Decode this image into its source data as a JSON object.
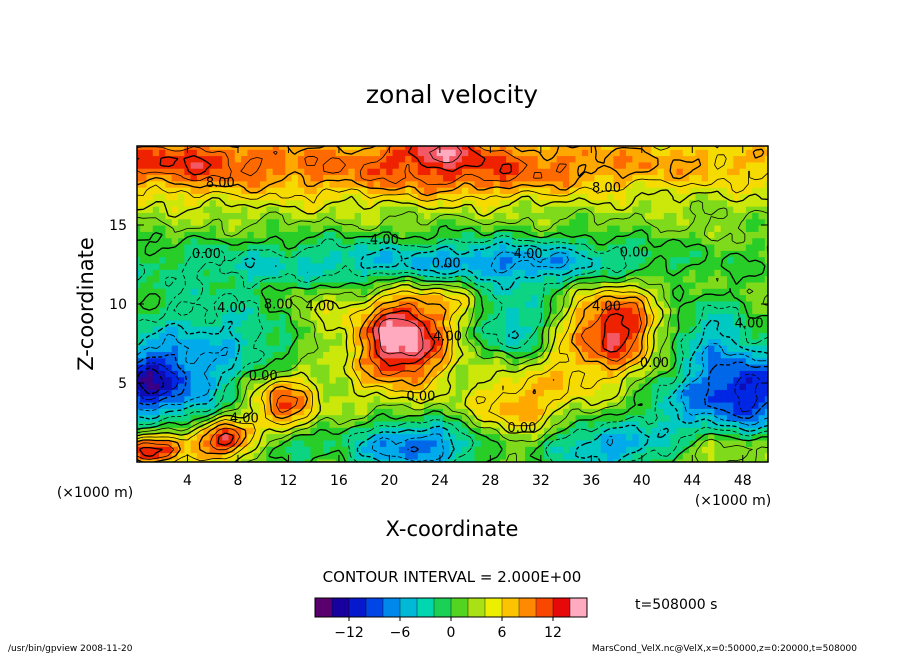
{
  "chart_data": {
    "type": "heatmap",
    "title": "zonal velocity",
    "xlabel": "X-coordinate",
    "ylabel": "Z-coordinate",
    "x_unit": "(×1000 m)",
    "z_unit": "(×1000 m)",
    "xlim": [
      0,
      50
    ],
    "ylim": [
      0,
      20
    ],
    "x_ticks": [
      4,
      8,
      12,
      16,
      20,
      24,
      28,
      32,
      36,
      40,
      44,
      48
    ],
    "y_ticks": [
      5,
      10,
      15
    ],
    "x_tick_labels": [
      "4",
      "8",
      "12",
      "16",
      "20",
      "24",
      "28",
      "32",
      "36",
      "40",
      "44",
      "48"
    ],
    "y_tick_labels": [
      "5",
      "10",
      "15"
    ],
    "contour_interval_text": "CONTOUR INTERVAL = 2.000E+00",
    "colorbar": {
      "min": -15,
      "max": 15,
      "ticks": [
        -12,
        -6,
        0,
        6,
        12
      ],
      "tick_labels": [
        "−12",
        "−6",
        "0",
        "6",
        "12"
      ]
    },
    "time_text": "t=508000 s",
    "footer_left": "/usr/bin/gpview  2008-11-20",
    "footer_right": "MarsCond_VelX.nc@VelX,x=0:50000,z=0:20000,t=508000",
    "field_features": [
      {
        "x": 25,
        "z": 19.0,
        "sx": 30,
        "sz": 1.5,
        "value": 7
      },
      {
        "x": 24,
        "z": 19.8,
        "sx": 2.5,
        "sz": 0.7,
        "value": 6
      },
      {
        "x": 3,
        "z": 19.3,
        "sx": 4,
        "sz": 1.0,
        "value": 4
      },
      {
        "x": 26,
        "z": 17.8,
        "sx": 6,
        "sz": 1.0,
        "value": 3
      },
      {
        "x": 6,
        "z": 17.5,
        "sx": 8,
        "sz": 1.2,
        "value": 2
      },
      {
        "x": 20,
        "z": 12.5,
        "sx": 20,
        "sz": 1.2,
        "value": -5
      },
      {
        "x": 31,
        "z": 12.8,
        "sx": 10,
        "sz": 1.0,
        "value": -4
      },
      {
        "x": 5,
        "z": 9.5,
        "sx": 6,
        "sz": 1.5,
        "value": -2
      },
      {
        "x": 8,
        "z": 7.5,
        "sx": 5,
        "sz": 1.8,
        "value": -4
      },
      {
        "x": 1.5,
        "z": 5.0,
        "sx": 4,
        "sz": 2.0,
        "value": -10
      },
      {
        "x": 0.5,
        "z": 5.0,
        "sx": 2,
        "sz": 1.2,
        "value": -4
      },
      {
        "x": 21,
        "z": 7.8,
        "sx": 2.5,
        "sz": 2.0,
        "value": 15
      },
      {
        "x": 38,
        "z": 8.5,
        "sx": 2.5,
        "sz": 2.0,
        "value": 11
      },
      {
        "x": 30,
        "z": 8.5,
        "sx": 2.2,
        "sz": 1.8,
        "value": -7
      },
      {
        "x": 11.5,
        "z": 3.8,
        "sx": 1.8,
        "sz": 1.4,
        "value": 9
      },
      {
        "x": 7.0,
        "z": 1.5,
        "sx": 1.6,
        "sz": 0.9,
        "value": 10
      },
      {
        "x": 2.0,
        "z": 1.0,
        "sx": 2.5,
        "sz": 0.8,
        "value": 8
      },
      {
        "x": 0.3,
        "z": 0.6,
        "sx": 1.5,
        "sz": 0.5,
        "value": 5
      },
      {
        "x": 22,
        "z": 1.0,
        "sx": 4,
        "sz": 1.2,
        "value": -10
      },
      {
        "x": 37,
        "z": 1.0,
        "sx": 4,
        "sz": 1.2,
        "value": -8
      },
      {
        "x": 48,
        "z": 4.5,
        "sx": 3.5,
        "sz": 2.0,
        "value": -13
      },
      {
        "x": 45,
        "z": 8.5,
        "sx": 2.5,
        "sz": 1.5,
        "value": -5
      },
      {
        "x": 30,
        "z": 3.5,
        "sx": 2.5,
        "sz": 2.0,
        "value": 6
      },
      {
        "x": 34,
        "z": 6.0,
        "sx": 2.5,
        "sz": 2.0,
        "value": 3
      },
      {
        "x": 14,
        "z": 9.5,
        "sx": 2.0,
        "sz": 1.5,
        "value": 3
      },
      {
        "x": 12,
        "z": 1.0,
        "sx": 1.5,
        "sz": 0.8,
        "value": -5
      },
      {
        "x": 46,
        "z": 0.8,
        "sx": 2.5,
        "sz": 0.8,
        "value": 4
      },
      {
        "x": 42,
        "z": 3.5,
        "sx": 2.0,
        "sz": 1.5,
        "value": -3
      },
      {
        "x": 44,
        "z": 12.5,
        "sx": 4,
        "sz": 1.2,
        "value": 2
      },
      {
        "x": 25,
        "z": 10.5,
        "sx": 2.0,
        "sz": 1.0,
        "value": 3
      },
      {
        "x": 17,
        "z": 5.0,
        "sx": 2.5,
        "sz": 2.0,
        "value": 1
      }
    ],
    "contour_labels": [
      {
        "text": "8.00",
        "x": 6.6,
        "z": 17.4
      },
      {
        "text": "8.00",
        "x": 37.2,
        "z": 17.1
      },
      {
        "text": "4.00",
        "x": 19.6,
        "z": 13.8
      },
      {
        "text": "0.00",
        "x": 5.5,
        "z": 12.9
      },
      {
        "text": "0.00",
        "x": 39.4,
        "z": 13.0
      },
      {
        "text": "4.00",
        "x": 31.0,
        "z": 12.9
      },
      {
        "text": "0.00",
        "x": 24.5,
        "z": 12.3
      },
      {
        "text": "4.00",
        "x": 7.5,
        "z": 9.5
      },
      {
        "text": "8.00",
        "x": 11.2,
        "z": 9.7
      },
      {
        "text": "4.00",
        "x": 14.5,
        "z": 9.6
      },
      {
        "text": "4.00",
        "x": 24.6,
        "z": 7.7
      },
      {
        "text": "0.00",
        "x": 10.0,
        "z": 5.2
      },
      {
        "text": "0.00",
        "x": 22.5,
        "z": 3.9
      },
      {
        "text": "0.00",
        "x": 30.5,
        "z": 1.9
      },
      {
        "text": "4.00",
        "x": 8.5,
        "z": 2.5
      },
      {
        "text": "0.00",
        "x": 41.0,
        "z": 6.0
      },
      {
        "text": "4.00",
        "x": 48.5,
        "z": 8.5
      },
      {
        "text": "4.00",
        "x": 37.2,
        "z": 9.6
      }
    ]
  }
}
